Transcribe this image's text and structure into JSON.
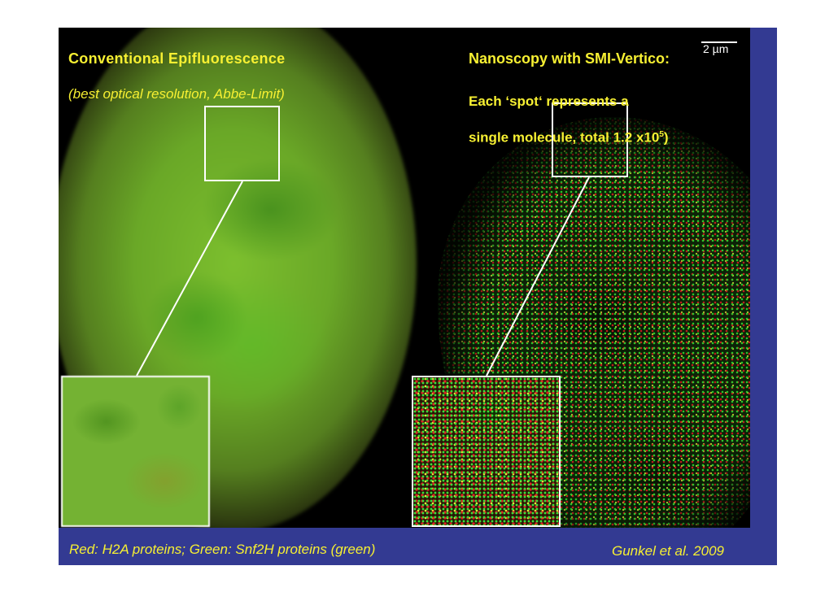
{
  "left_panel": {
    "title": "Conventional Epifluorescence",
    "subtitle": "(best optical resolution, Abbe-Limit)"
  },
  "right_panel": {
    "title": "Nanoscopy with SMI-Vertico:",
    "description_line1": "Each ‘spot‘ represents a",
    "description_line2_prefix": "single molecule, total 1.2 x10",
    "description_line2_exponent": "5",
    "description_line2_suffix": ")"
  },
  "scale_bar": {
    "label": "2 µm"
  },
  "caption": {
    "legend": "Red: H2A proteins; Green: Snf2H proteins (green)",
    "citation": "Gunkel et al. 2009"
  },
  "colors": {
    "text_accent": "#f7f032",
    "slide_frame": "#333a92",
    "green_channel": "#38e038",
    "red_channel": "#e02424"
  }
}
